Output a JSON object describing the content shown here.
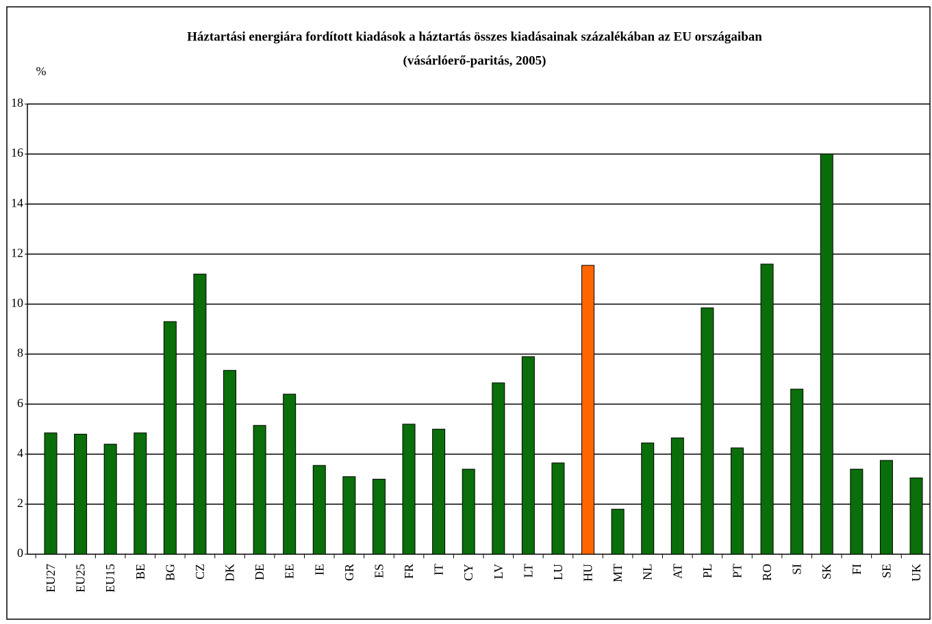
{
  "chart_data": {
    "type": "bar",
    "title": "Háztartási energiára fordított kiadások a háztartás összes kiadásainak százalékában az EU országaiban",
    "subtitle": "(vásárlóerő-paritás, 2005)",
    "ylabel": "%",
    "categories": [
      "EU27",
      "EU25",
      "EU15",
      "BE",
      "BG",
      "CZ",
      "DK",
      "DE",
      "EE",
      "IE",
      "GR",
      "ES",
      "FR",
      "IT",
      "CY",
      "LV",
      "LT",
      "LU",
      "HU",
      "MT",
      "NL",
      "AT",
      "PL",
      "PT",
      "RO",
      "SI",
      "SK",
      "FI",
      "SE",
      "UK"
    ],
    "values": [
      4.85,
      4.8,
      4.4,
      4.85,
      9.3,
      11.2,
      7.35,
      5.15,
      6.4,
      3.55,
      3.1,
      3.0,
      5.2,
      5.0,
      3.4,
      6.85,
      7.9,
      3.65,
      11.55,
      1.8,
      4.45,
      4.65,
      9.85,
      4.25,
      11.6,
      6.6,
      16.0,
      3.4,
      3.75,
      3.05
    ],
    "colors": [
      "#0a6e0a",
      "#0a6e0a",
      "#0a6e0a",
      "#0a6e0a",
      "#0a6e0a",
      "#0a6e0a",
      "#0a6e0a",
      "#0a6e0a",
      "#0a6e0a",
      "#0a6e0a",
      "#0a6e0a",
      "#0a6e0a",
      "#0a6e0a",
      "#0a6e0a",
      "#0a6e0a",
      "#0a6e0a",
      "#0a6e0a",
      "#0a6e0a",
      "#ff6600",
      "#0a6e0a",
      "#0a6e0a",
      "#0a6e0a",
      "#0a6e0a",
      "#0a6e0a",
      "#0a6e0a",
      "#0a6e0a",
      "#0a6e0a",
      "#0a6e0a",
      "#0a6e0a",
      "#0a6e0a"
    ],
    "ylim": [
      0,
      18
    ],
    "yticks": [
      0,
      2,
      4,
      6,
      8,
      10,
      12,
      14,
      16,
      18
    ],
    "grid": true
  }
}
